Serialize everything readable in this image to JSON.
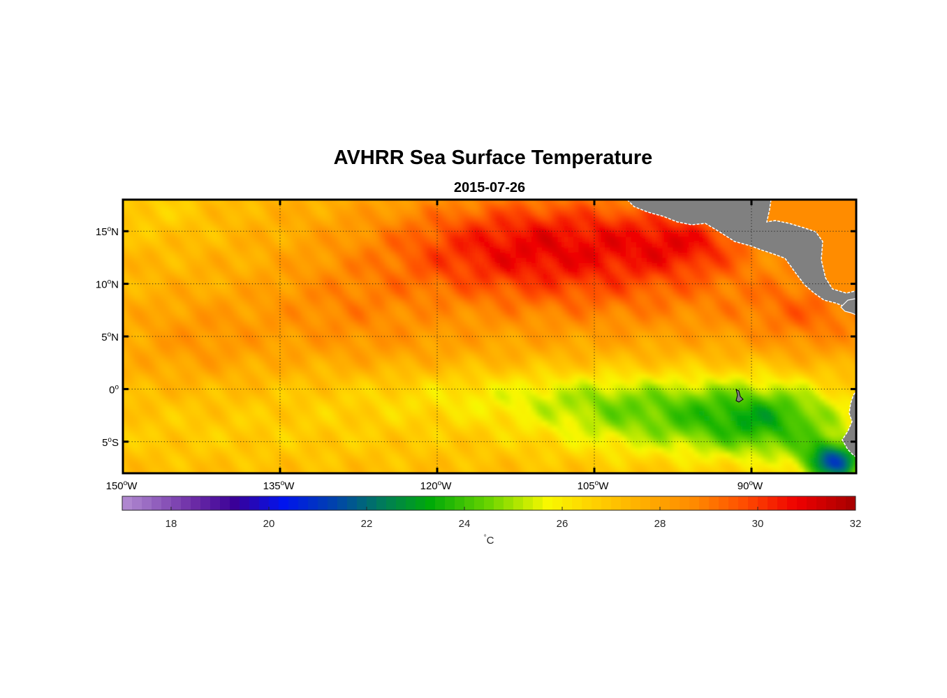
{
  "figure": {
    "title": "AVHRR Sea Surface Temperature",
    "subtitle": "2015-07-26"
  },
  "map": {
    "lon_range": [
      -150,
      -80
    ],
    "lat_range": [
      -8,
      18
    ],
    "lon_ticks": [
      {
        "value": -150,
        "deg": "150",
        "hem": "W"
      },
      {
        "value": -135,
        "deg": "135",
        "hem": "W"
      },
      {
        "value": -120,
        "deg": "120",
        "hem": "W"
      },
      {
        "value": -105,
        "deg": "105",
        "hem": "W"
      },
      {
        "value": -90,
        "deg": "90",
        "hem": "W"
      }
    ],
    "lat_ticks": [
      {
        "value": 15,
        "deg": "15",
        "hem": "N"
      },
      {
        "value": 10,
        "deg": "10",
        "hem": "N"
      },
      {
        "value": 5,
        "deg": "5",
        "hem": "N"
      },
      {
        "value": 0,
        "deg": "0",
        "hem": ""
      },
      {
        "value": -5,
        "deg": "5",
        "hem": "S"
      }
    ],
    "land_color": "#808080",
    "grid": true
  },
  "colorbar": {
    "min": 17,
    "max": 32,
    "ticks": [
      18,
      20,
      22,
      24,
      26,
      28,
      30,
      32
    ],
    "tick_labels": [
      "18",
      "20",
      "22",
      "24",
      "26",
      "28",
      "30",
      "32"
    ],
    "label_unit": "C",
    "label_symbol": "°",
    "colormap": [
      {
        "v": 17,
        "c": "#b48ed2"
      },
      {
        "v": 18.5,
        "c": "#6a2aa5"
      },
      {
        "v": 19.3,
        "c": "#3a0098"
      },
      {
        "v": 20.3,
        "c": "#0014ee"
      },
      {
        "v": 21.4,
        "c": "#0046a8"
      },
      {
        "v": 22.3,
        "c": "#007a5c"
      },
      {
        "v": 23.3,
        "c": "#00aa08"
      },
      {
        "v": 24.5,
        "c": "#6ad400"
      },
      {
        "v": 25.7,
        "c": "#f8f800"
      },
      {
        "v": 26.6,
        "c": "#ffd200"
      },
      {
        "v": 27.6,
        "c": "#ffb000"
      },
      {
        "v": 28.7,
        "c": "#ff8a00"
      },
      {
        "v": 29.7,
        "c": "#ff4e00"
      },
      {
        "v": 30.8,
        "c": "#ef0000"
      },
      {
        "v": 32,
        "c": "#a40000"
      }
    ]
  },
  "sst_field": {
    "base_c": 27.4,
    "anomalies": [
      {
        "lon": -107,
        "lat": 14.5,
        "rx": 16,
        "ry": 5,
        "dc": 2.3
      },
      {
        "lon": -96,
        "lat": 14,
        "rx": 6,
        "ry": 3,
        "dc": 1.4
      },
      {
        "lon": -116,
        "lat": 12.5,
        "rx": 14,
        "ry": 5,
        "dc": 1.3
      },
      {
        "lon": -100,
        "lat": 8.5,
        "rx": 18,
        "ry": 5,
        "dc": 1.1
      },
      {
        "lon": -84,
        "lat": 7,
        "rx": 7,
        "ry": 4,
        "dc": 1.4
      },
      {
        "lon": -143,
        "lat": 5,
        "rx": 7,
        "ry": 4,
        "dc": 0.9
      },
      {
        "lon": -130,
        "lat": 8,
        "rx": 8,
        "ry": 4,
        "dc": 0.9
      },
      {
        "lon": -125,
        "lat": 4.5,
        "rx": 10,
        "ry": 3,
        "dc": 0.5
      },
      {
        "lon": -147,
        "lat": 17,
        "rx": 6,
        "ry": 3,
        "dc": -0.7
      },
      {
        "lon": -137,
        "lat": -4,
        "rx": 30,
        "ry": 4,
        "dc": -0.6
      },
      {
        "lon": -113,
        "lat": -0.5,
        "rx": 16,
        "ry": 2.5,
        "dc": -1.1
      },
      {
        "lon": -100,
        "lat": -2.5,
        "rx": 11,
        "ry": 4,
        "dc": -2.3
      },
      {
        "lon": -88,
        "lat": -3,
        "rx": 8,
        "ry": 4,
        "dc": -3.2
      },
      {
        "lon": -82,
        "lat": -7,
        "rx": 3,
        "ry": 2,
        "dc": -5.2
      }
    ]
  }
}
